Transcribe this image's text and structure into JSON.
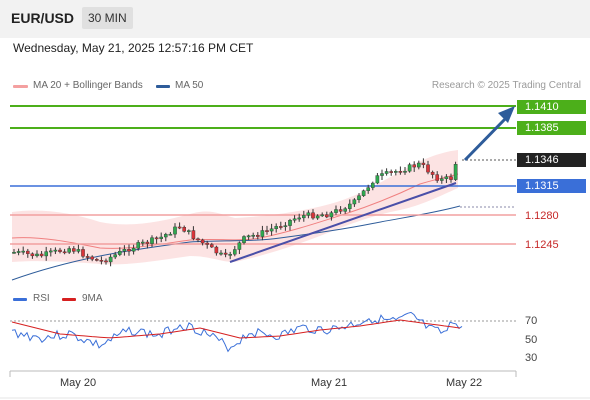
{
  "header": {
    "symbol": "EUR/USD",
    "timeframe": "30 MIN",
    "datetime": "Wednesday, May 21, 2025 12:57:16 PM CET"
  },
  "legend": {
    "ma20_label": "MA 20 + Bollinger Bands",
    "ma50_label": "MA 50",
    "credit": "Research © 2025 Trading Central",
    "ma20_color": "#f08080",
    "ma50_color": "#2e5c9a"
  },
  "levels": [
    {
      "value": "1.1410",
      "kind": "resistance",
      "color": "#4caf1a"
    },
    {
      "value": "1.1385",
      "kind": "resistance",
      "color": "#4caf1a"
    },
    {
      "value": "1.1346",
      "kind": "last",
      "color": "#222222"
    },
    {
      "value": "1.1315",
      "kind": "pivot",
      "color": "#3a6fd8"
    },
    {
      "value": "1.1280",
      "kind": "support",
      "color": "#c62828"
    },
    {
      "value": "1.1245",
      "kind": "support",
      "color": "#c62828"
    }
  ],
  "rsi": {
    "label": "RSI",
    "ma_label": "9MA",
    "ticks": [
      "70",
      "50",
      "30"
    ],
    "rsi_color": "#3a6fd8",
    "ma_color": "#d62020"
  },
  "x_axis": {
    "labels": [
      "May 20",
      "May 21",
      "May 22"
    ]
  }
}
